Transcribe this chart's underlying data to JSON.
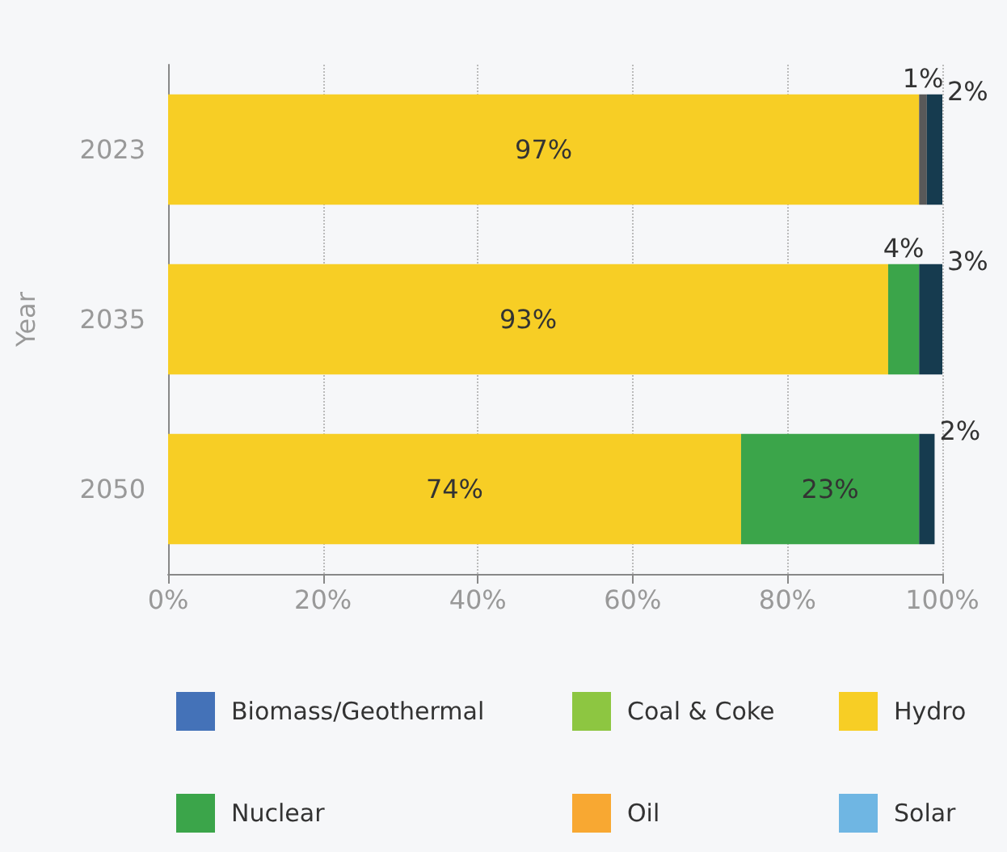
{
  "chart_data": {
    "type": "bar",
    "orientation": "horizontal",
    "stacked": true,
    "ylabel": "Year",
    "categories": [
      "2023",
      "2035",
      "2050"
    ],
    "series": [
      {
        "name": "Biomass/Geothermal",
        "color": "#4472b8",
        "values": [
          null,
          null,
          null
        ]
      },
      {
        "name": "Coal & Coke",
        "color": "#8dc641",
        "values": [
          null,
          null,
          null
        ]
      },
      {
        "name": "Hydro",
        "color": "#f7ce25",
        "values": [
          97,
          93,
          74
        ],
        "value_labels": [
          "97%",
          "93%",
          "74%"
        ]
      },
      {
        "name": "Nuclear",
        "color": "#3ba54a",
        "values": [
          null,
          4,
          23
        ],
        "value_labels": [
          null,
          "4%",
          "23%"
        ]
      },
      {
        "name": "Oil",
        "color": "#f8a832",
        "values": [
          null,
          null,
          null
        ]
      },
      {
        "name": "Solar",
        "color": "#6fb6e3",
        "values": [
          null,
          null,
          null
        ]
      },
      {
        "color": "#595959",
        "values": [
          1,
          null,
          null
        ],
        "value_labels": [
          "1%",
          null,
          null
        ]
      },
      {
        "color": "#163b4f",
        "values": [
          2,
          3,
          2
        ],
        "value_labels": [
          "2%",
          "3%",
          "2%"
        ]
      }
    ],
    "xlim": [
      0,
      100
    ],
    "xticks": [
      {
        "value": 0,
        "label": "0%"
      },
      {
        "value": 20,
        "label": "20%"
      },
      {
        "value": 40,
        "label": "40%"
      },
      {
        "value": 60,
        "label": "60%"
      },
      {
        "value": 80,
        "label": "80%"
      },
      {
        "value": 100,
        "label": "100%"
      }
    ],
    "grid": "x",
    "legend": "bottom"
  }
}
